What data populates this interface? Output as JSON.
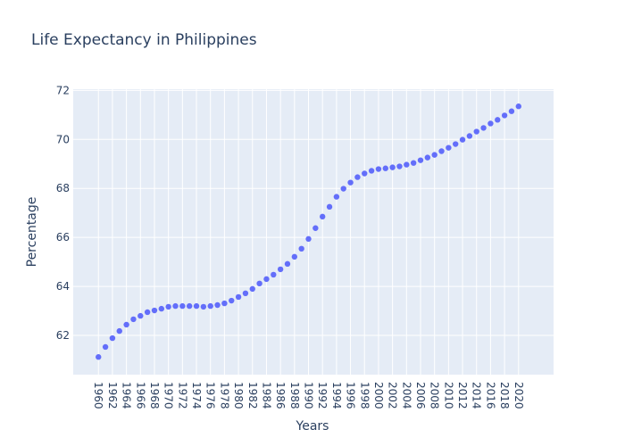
{
  "chart_data": {
    "type": "scatter",
    "title": "Life Expectancy in Philippines",
    "x_label": "Years",
    "y_label": "Percentage",
    "x": [
      1960,
      1961,
      1962,
      1963,
      1964,
      1965,
      1966,
      1967,
      1968,
      1969,
      1970,
      1971,
      1972,
      1973,
      1974,
      1975,
      1976,
      1977,
      1978,
      1979,
      1980,
      1981,
      1982,
      1983,
      1984,
      1985,
      1986,
      1987,
      1988,
      1989,
      1990,
      1991,
      1992,
      1993,
      1994,
      1995,
      1996,
      1997,
      1998,
      1999,
      2000,
      2001,
      2002,
      2003,
      2004,
      2005,
      2006,
      2007,
      2008,
      2009,
      2010,
      2011,
      2012,
      2013,
      2014,
      2015,
      2016,
      2017,
      2018,
      2019,
      2020
    ],
    "series": [
      {
        "color": "#636efa",
        "values": [
          61.12,
          61.53,
          61.89,
          62.18,
          62.44,
          62.66,
          62.8,
          62.95,
          63.02,
          63.09,
          63.17,
          63.2,
          63.2,
          63.2,
          63.2,
          63.17,
          63.2,
          63.24,
          63.31,
          63.42,
          63.57,
          63.72,
          63.9,
          64.12,
          64.3,
          64.48,
          64.7,
          64.92,
          65.21,
          65.54,
          65.94,
          66.38,
          66.85,
          67.25,
          67.66,
          67.99,
          68.24,
          68.46,
          68.61,
          68.72,
          68.79,
          68.82,
          68.86,
          68.9,
          68.97,
          69.04,
          69.15,
          69.26,
          69.37,
          69.52,
          69.66,
          69.81,
          69.99,
          70.14,
          70.32,
          70.47,
          70.65,
          70.8,
          70.98,
          71.15,
          71.35
        ]
      }
    ],
    "xlim": [
      1956.4,
      2025
    ],
    "ylim": [
      60.4,
      72.05
    ],
    "xticks": [
      1960,
      1962,
      1964,
      1966,
      1968,
      1970,
      1972,
      1974,
      1976,
      1978,
      1980,
      1982,
      1984,
      1986,
      1988,
      1990,
      1992,
      1994,
      1996,
      1998,
      2000,
      2002,
      2004,
      2006,
      2008,
      2010,
      2012,
      2014,
      2016,
      2018,
      2020
    ],
    "yticks": [
      62,
      64,
      66,
      68,
      70,
      72
    ],
    "grid": true
  }
}
